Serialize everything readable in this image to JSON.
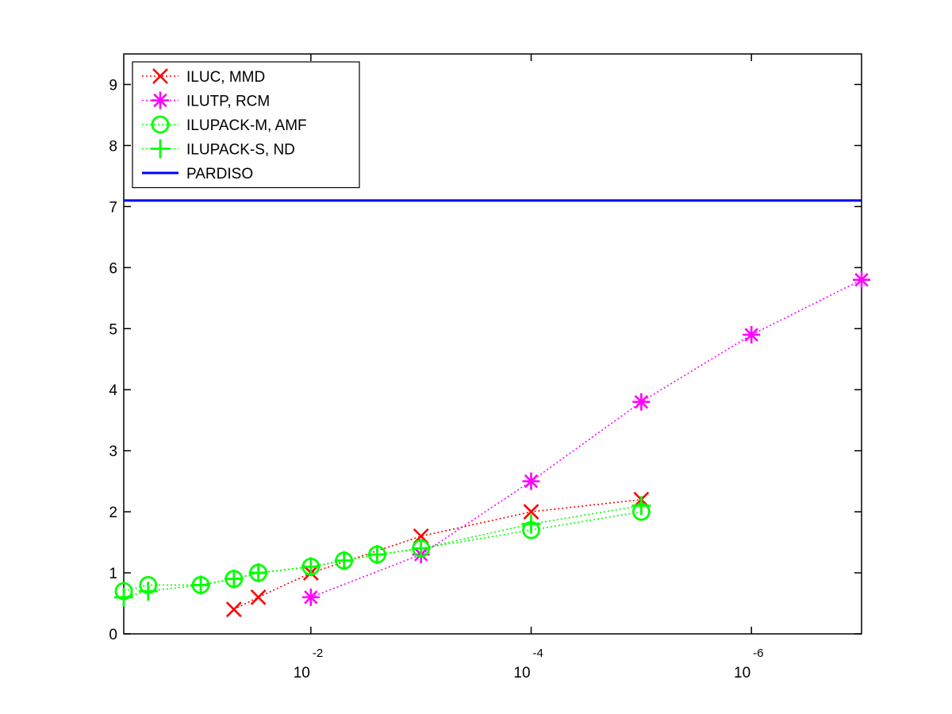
{
  "chart_data": {
    "type": "line",
    "x_scale": "log",
    "x_reversed": true,
    "xlim": [
      0.5,
      1e-07
    ],
    "ylim": [
      0,
      9.5
    ],
    "x_ticks": [
      {
        "value": 0.01,
        "base": "10",
        "exponent": "-2"
      },
      {
        "value": 0.0001,
        "base": "10",
        "exponent": "-4"
      },
      {
        "value": 1e-06,
        "base": "10",
        "exponent": "-6"
      }
    ],
    "y_ticks": [
      "0",
      "1",
      "2",
      "3",
      "4",
      "5",
      "6",
      "7",
      "8",
      "9"
    ],
    "grid": false,
    "legend_position": "top-left",
    "series": [
      {
        "name": "ILUC, MMD",
        "color": "#ff0000",
        "marker": "x",
        "line": "dotted",
        "x": [
          0.05,
          0.03,
          0.01,
          0.001,
          0.0001,
          1e-05
        ],
        "y": [
          0.4,
          0.6,
          1.0,
          1.6,
          2.0,
          2.2
        ]
      },
      {
        "name": "ILUTP, RCM",
        "color": "#ff00ff",
        "marker": "asterisk",
        "line": "dotted",
        "x": [
          0.01,
          0.001,
          0.0001,
          1e-05,
          1e-06,
          1e-07
        ],
        "y": [
          0.6,
          1.3,
          2.5,
          3.8,
          4.9,
          5.8
        ]
      },
      {
        "name": "ILUPACK-M, AMF",
        "color": "#00ff00",
        "marker": "circle",
        "line": "dotted",
        "x": [
          0.5,
          0.3,
          0.1,
          0.05,
          0.03,
          0.01,
          0.005,
          0.0025,
          0.001,
          0.0001,
          1e-05
        ],
        "y": [
          0.7,
          0.8,
          0.8,
          0.9,
          1.0,
          1.1,
          1.2,
          1.3,
          1.4,
          1.7,
          2.0
        ]
      },
      {
        "name": "ILUPACK-S, ND",
        "color": "#00ff00",
        "marker": "plus",
        "line": "dotted",
        "x": [
          0.5,
          0.3,
          0.1,
          0.05,
          0.03,
          0.01,
          0.005,
          0.0025,
          0.001,
          0.0001,
          1e-05
        ],
        "y": [
          0.6,
          0.7,
          0.8,
          0.9,
          1.0,
          1.1,
          1.2,
          1.3,
          1.4,
          1.8,
          2.1
        ]
      },
      {
        "name": "PARDISO",
        "color": "#0000ff",
        "marker": "none",
        "line": "solid",
        "x": [
          0.5,
          1e-07
        ],
        "y": [
          7.1,
          7.1
        ]
      }
    ]
  }
}
